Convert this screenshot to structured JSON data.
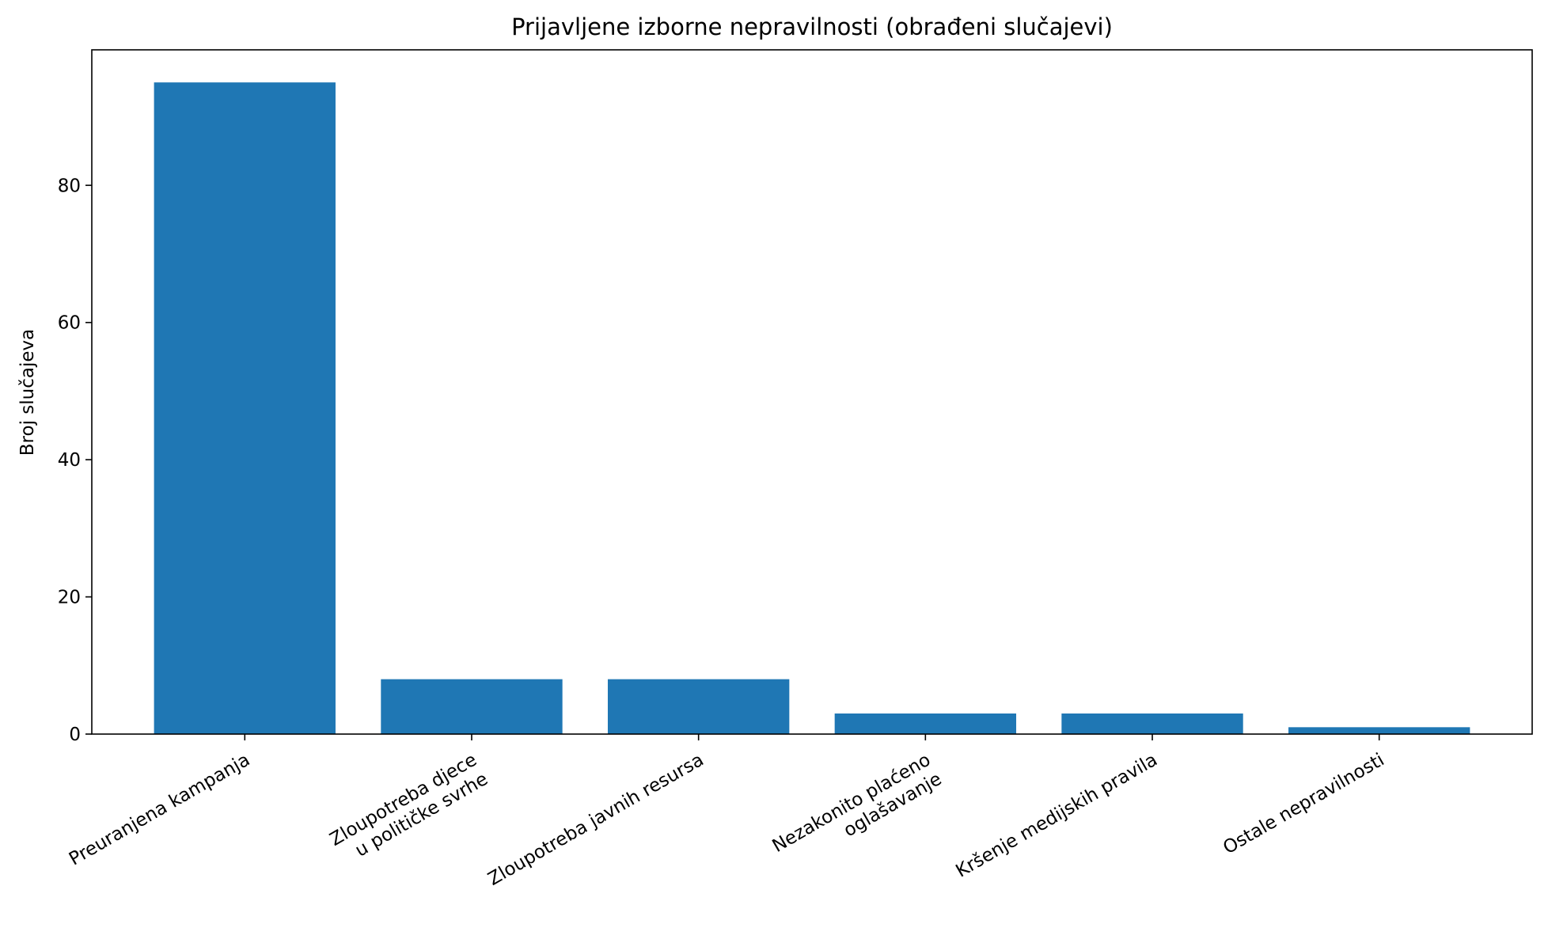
{
  "chart_data": {
    "type": "bar",
    "title": "Prijavljene izborne nepravilnosti (obrađeni slučajevi)",
    "xlabel": "",
    "ylabel": "Broj slučajeva",
    "categories": [
      "Preuranjena kampanja",
      "Zloupotreba djece\nu političke svrhe",
      "Zloupotreba javnih resursa",
      "Nezakonito plaćeno\noglašavanje",
      "Kršenje medijskih pravila",
      "Ostale nepravilnosti"
    ],
    "values": [
      95,
      8,
      8,
      3,
      3,
      1
    ],
    "ylim": [
      0,
      99.75
    ],
    "yticks": [
      0,
      20,
      40,
      60,
      80
    ],
    "grid": false,
    "legend": "none",
    "bar_color": "#1f77b4"
  }
}
